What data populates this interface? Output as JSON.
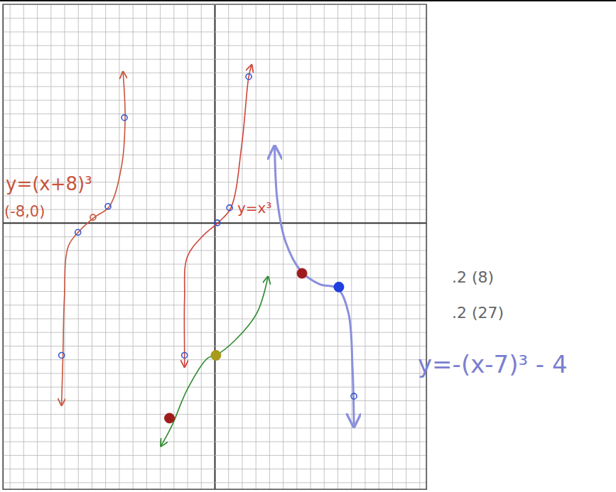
{
  "chart_data": {
    "type": "line",
    "xlim": [
      -15.5,
      15.5
    ],
    "ylim": [
      -19.5,
      16
    ],
    "xticks": [
      -15,
      -14,
      -13,
      -12,
      -11,
      -10,
      -9,
      -8,
      -7,
      -6,
      -5,
      -4,
      -3,
      -2,
      -1,
      0,
      1,
      2,
      3,
      4,
      5,
      6,
      7,
      8,
      9,
      10,
      11,
      12,
      13,
      14,
      15
    ],
    "yticks": [
      -19,
      -18,
      -17,
      -16,
      -15,
      -14,
      -13,
      -12,
      -11,
      -10,
      -9,
      -8,
      -7,
      -6,
      -5,
      -4,
      -3,
      -2,
      -1,
      0,
      1,
      2,
      3,
      4,
      5,
      6,
      7,
      8,
      9,
      10,
      11,
      12,
      13,
      14,
      15,
      16
    ],
    "grid": true,
    "tick_labels": false,
    "annotations": [
      "y=(x+8)³",
      "(-8,0)",
      "y=x³",
      ".2 (8)",
      ".2 (27)",
      "y=-(x-7)³ - 4"
    ],
    "series": [
      {
        "type": "line",
        "color": "#c8553d",
        "marker": "arrow",
        "line_style": "solid",
        "x": [
          -6.7,
          -6.55,
          -6.8,
          -7.7,
          -8.8,
          -9.8,
          -10.7,
          -11.0,
          -11.1,
          -11.2
        ],
        "values": [
          11.0,
          7.7,
          4.2,
          1.2,
          0.4,
          -0.5,
          -1.7,
          -5.6,
          -9.7,
          -13.3
        ]
      },
      {
        "type": "line",
        "color": "#d0453a",
        "marker": "arrow",
        "line_style": "solid",
        "x": [
          2.7,
          2.5,
          2.0,
          1.2,
          0.3,
          -0.8,
          -2.0,
          -2.2,
          -2.2,
          -2.2
        ],
        "values": [
          11.5,
          10.7,
          5.8,
          1.1,
          0.05,
          -0.9,
          -2.5,
          -5.6,
          -9.6,
          -10.5
        ]
      },
      {
        "type": "line",
        "color": "#8a8fdc",
        "marker": "arrow",
        "line_style": "solid",
        "x": [
          4.4,
          4.6,
          5.2,
          6.3,
          7.7,
          9.0,
          9.8,
          10.1,
          10.2
        ],
        "values": [
          5.5,
          1.6,
          -1.4,
          -3.5,
          -4.5,
          -4.8,
          -6.6,
          -10.7,
          -14.8
        ]
      },
      {
        "type": "line",
        "color": "#2e8b2e",
        "marker": "arrow",
        "line_style": "solid",
        "x": [
          -3.9,
          -3.1,
          -2.0,
          -0.5,
          0.1,
          1.5,
          3.1,
          3.9
        ],
        "values": [
          -16.3,
          -14.8,
          -12.2,
          -9.9,
          -9.7,
          -8.6,
          -6.6,
          -4.0
        ]
      },
      {
        "type": "scatter",
        "color": "#3355cc",
        "marker": "circle-open",
        "x": [
          -6.6,
          -7.8,
          -10.0,
          -11.2,
          2.5,
          1.1,
          0.2,
          -2.2,
          10.2
        ],
        "values": [
          7.7,
          1.2,
          -0.7,
          -9.7,
          10.7,
          1.1,
          0.0,
          -9.7,
          -12.7
        ]
      },
      {
        "type": "scatter",
        "color": "#c8553d",
        "marker": "circle-open",
        "x": [
          -8.9
        ],
        "values": [
          0.4
        ]
      },
      {
        "type": "scatter",
        "marker": "circle",
        "colors": [
          "#a01c1c",
          "#1f3fe0",
          "#a89a1a",
          "#a01c1c"
        ],
        "x": [
          6.4,
          9.1,
          0.1,
          -3.3
        ],
        "values": [
          -3.7,
          -4.7,
          -9.7,
          -14.3
        ]
      }
    ]
  }
}
